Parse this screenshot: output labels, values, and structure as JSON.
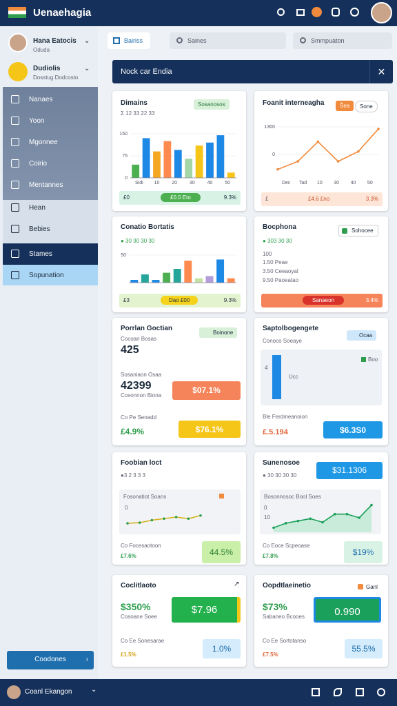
{
  "app": {
    "title": "Uenaehagia"
  },
  "sidebar": {
    "profiles": [
      {
        "name": "Hana Eatocis",
        "sub": "Oduda"
      },
      {
        "name": "Dudiolis",
        "sub": "Dosstug Dodcosto"
      }
    ],
    "menu": [
      "Nanaes",
      "Yoon",
      "Mgonnee",
      "Coirio",
      "Mentannes",
      "Hean",
      "Bebies",
      "Stames",
      "Sopunation"
    ],
    "button": "Coodones"
  },
  "toolbar": {
    "tab": "Bairiss",
    "search1": "Saines",
    "search2": "Smmpuaton"
  },
  "header": {
    "title": "Nock car Endia"
  },
  "cards": [
    {
      "title": "Dimains",
      "subtitle": "Σ 12 33 22 33",
      "badge": "Sosanosos",
      "chart": {
        "type": "bar",
        "values": [
          45,
          135,
          90,
          125,
          95,
          65,
          110,
          120,
          145,
          18
        ],
        "colors": [
          "#4caf50",
          "#1e88e5",
          "#f5a623",
          "#ff8a50",
          "#1e88e5",
          "#a5d6a7",
          "#f5c518",
          "#1e88e5",
          "#1e88e5",
          "#f5c518"
        ],
        "ylim": [
          0,
          150
        ],
        "yticks": [
          0,
          75,
          150
        ],
        "xlabels": [
          "Sidi",
          "10",
          "20",
          "30",
          "40",
          "50"
        ]
      },
      "footer": {
        "left": "£0",
        "pill": "£0.0 Eto",
        "right": "9.3%"
      }
    },
    {
      "title": "Foanit interneagha",
      "badge": "Ŝea",
      "badge2": "Sone",
      "chart": {
        "type": "line",
        "values": [
          -700,
          -325,
          600,
          -325,
          140,
          1200
        ],
        "color": "#f08a3c",
        "ylim": [
          -1100,
          1300
        ],
        "yticks": [
          0,
          1300
        ],
        "xlabels": [
          "Dec",
          "Tad",
          "10",
          "30",
          "40",
          "50"
        ]
      },
      "footer": {
        "left": "£",
        "pill": "£4.6 £no",
        "right": "3.3%"
      }
    },
    {
      "title": "Conatio Bortatis",
      "subtitle": "● 30 30 30 30",
      "chart": {
        "type": "bar",
        "values": [
          5,
          15,
          5,
          18,
          25,
          40,
          8,
          12,
          42,
          8
        ],
        "colors": [
          "#1e88e5",
          "#26a69a",
          "#1e88e5",
          "#4caf50",
          "#26a69a",
          "#ff8a50",
          "#c5e1a5",
          "#b39ddb",
          "#1e88e5",
          "#ff8a50"
        ],
        "ylim": [
          0,
          60
        ],
        "yticks": [
          50
        ],
        "xlabels": []
      },
      "footer": {
        "left": "£3",
        "pill": "Dao £00",
        "right": "9.3%"
      }
    },
    {
      "title": "Bocphona",
      "subtitle": "● 303 30 30",
      "badge": "Sohocee",
      "rows": [
        "100",
        "1.50 Peae",
        "3.50 Ceeaoyal",
        "9.50 Paoeatao"
      ],
      "footer": {
        "pill": "Sanaeon",
        "right": "3.4%"
      }
    },
    {
      "title": "Porrlan Goctian",
      "badge": "Boinone",
      "sub1": "Cocoan Bosas",
      "big1": "425",
      "sub2": "Sosaniaon Osaa",
      "big2": "42399",
      "sub3": "Cceonnon Biona",
      "btn1": "$07.1%",
      "sub4": "Co Pe Senadd",
      "val4": "£4.9%",
      "btn2": "$76.1%"
    },
    {
      "title": "Saptolbogengete",
      "badge": "Ocaa",
      "sub1": "Conoco Soeaye",
      "axis": "4",
      "label": "Ucc",
      "legend": "Boo",
      "sub4": "Ble Ferdmeanoion",
      "val4": "£.5.194",
      "btn2": "$6.3S0"
    },
    {
      "title": "Foobian loct",
      "subtitle": "●3 2 3 3 3",
      "panel": "Fosonatiot Soans",
      "axis": "0",
      "chart": {
        "type": "line",
        "values": [
          2,
          2.2,
          3,
          3.5,
          4,
          3.5,
          4.5
        ],
        "color": "#d4b21c",
        "ylim": [
          0,
          8
        ]
      },
      "sub4": "Co Focesaotoon",
      "val4": "£7.6%",
      "box": "44.5%"
    },
    {
      "title": "Sunenosoe",
      "btn": "$31.1306",
      "subtitle": "● 30 30 30 30",
      "panel": "Bosonnosoc Bool Soes",
      "axis": "0",
      "axis2": "10",
      "chart": {
        "type": "line",
        "values": [
          1,
          2,
          2.5,
          3,
          2.2,
          4,
          4,
          3.2,
          6
        ],
        "color": "#1aa05a",
        "ylim": [
          0,
          7
        ]
      },
      "sub4": "Co Eoce Scpeoase",
      "val4": "£7.8%",
      "box": "$19%"
    },
    {
      "title": "Coclitlaoto",
      "big": "$350%",
      "btn": "$7.96",
      "sub1": "Cosoane Soee",
      "sub4": "Co Ee Sonesarae",
      "val4": "£1.5%",
      "box": "1.0%"
    },
    {
      "title": "Oopdtlaeinetio",
      "badge": "Ganl",
      "big": "$73%",
      "btn": "0.990",
      "sub1": "Sabaneo Bcooes",
      "sub4": "Co Ee Sortotanso",
      "val4": "£7.5%",
      "box": "55.5%"
    }
  ],
  "footer": {
    "user": "Coanl Ekangon"
  }
}
